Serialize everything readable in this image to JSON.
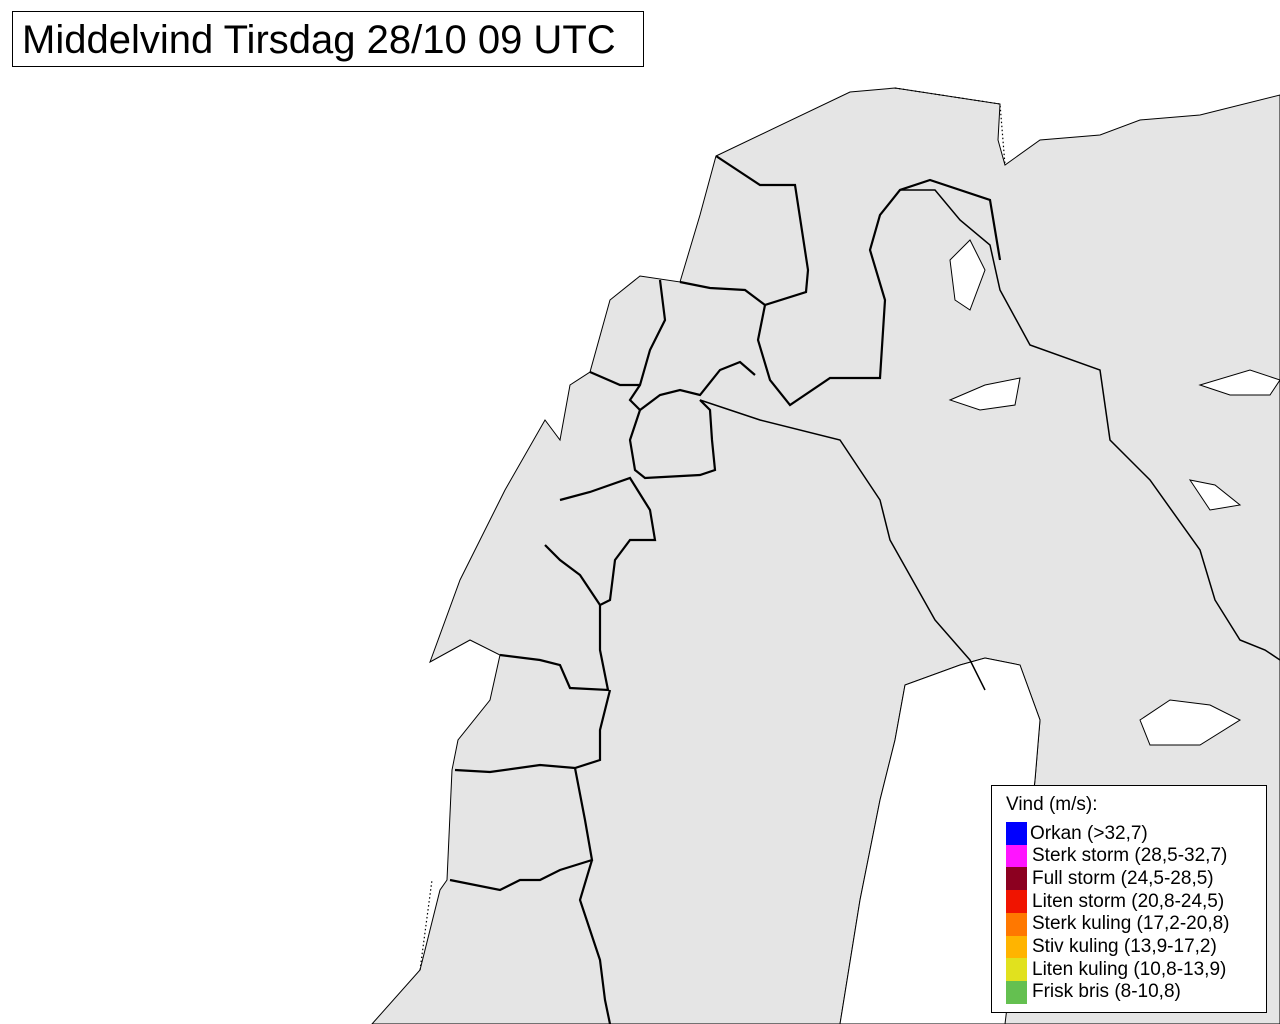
{
  "title": "Middelvind Tirsdag 28/10 09 UTC",
  "colors": {
    "land": "#e5e5e5",
    "sea": "#ffffff",
    "border": "#000000"
  },
  "legend": {
    "title": "Vind (m/s):",
    "items": [
      {
        "label": "Orkan (>32,7)",
        "color": "#0000ff"
      },
      {
        "label": "Sterk storm (28,5-32,7)",
        "color": "#ff14ff"
      },
      {
        "label": "Full storm (24,5-28,5)",
        "color": "#8c0020"
      },
      {
        "label": "Liten storm (20,8-24,5)",
        "color": "#f01400"
      },
      {
        "label": "Sterk kuling (17,2-20,8)",
        "color": "#ff7800"
      },
      {
        "label": "Stiv kuling (13,9-17,2)",
        "color": "#ffb400"
      },
      {
        "label": "Liten kuling (10,8-13,9)",
        "color": "#e1e11e"
      },
      {
        "label": "Frisk bris (8-10,8)",
        "color": "#64c050"
      }
    ]
  }
}
